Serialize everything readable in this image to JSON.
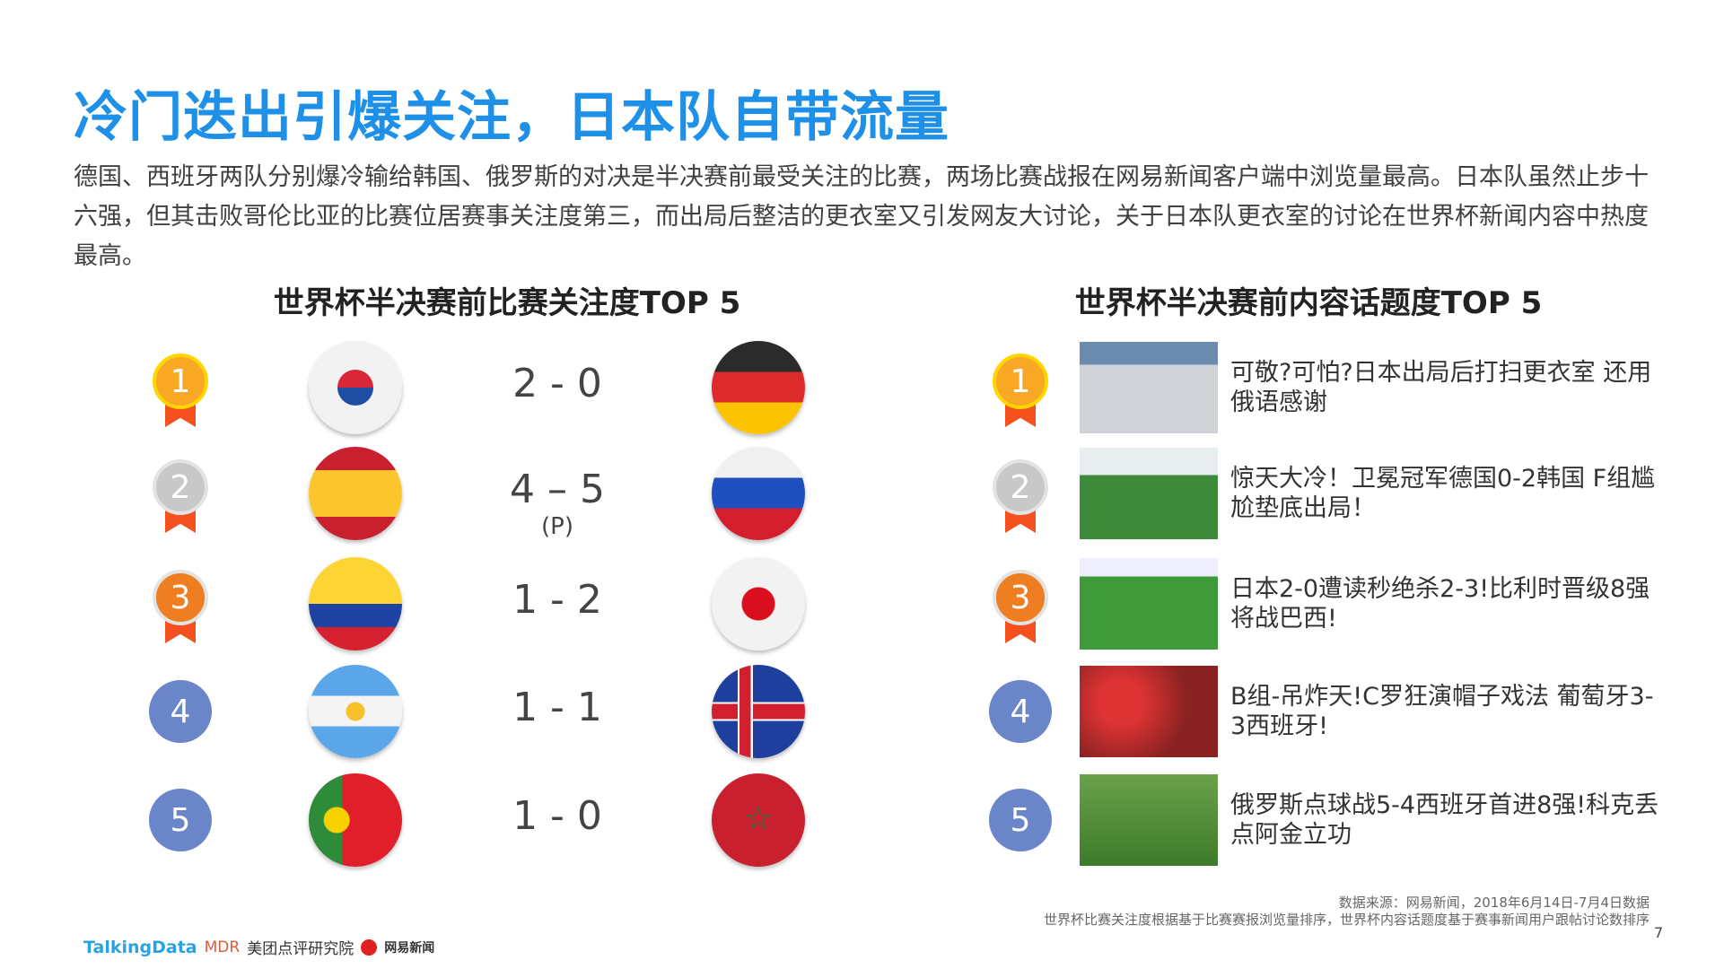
{
  "title": "冷门迭出引爆关注，日本队自带流量",
  "description": "德国、西班牙两队分别爆冷输给韩国、俄罗斯的对决是半决赛前最受关注的比赛，两场比赛战报在网易新闻客户端中浏览量最高。日本队虽然止步十六强，但其击败哥伦比亚的比赛位居赛事关注度第三，而出局后整洁的更衣室又引发网友大讨论，关于日本队更衣室的讨论在世界杯新闻内容中热度最高。",
  "left": {
    "heading": "世界杯半决赛前比赛关注度TOP 5",
    "matches": [
      {
        "rank": "1",
        "home": "korea",
        "score": "2 - 0",
        "away": "germany"
      },
      {
        "rank": "2",
        "home": "spain",
        "score": "4 – 5",
        "note": "(P)",
        "away": "russia"
      },
      {
        "rank": "3",
        "home": "colombia",
        "score": "1 - 2",
        "away": "japan"
      },
      {
        "rank": "4",
        "home": "argentina",
        "score": "1 - 1",
        "away": "iceland"
      },
      {
        "rank": "5",
        "home": "portugal",
        "score": "1 - 0",
        "away": "morocco"
      }
    ]
  },
  "right": {
    "heading": "世界杯半决赛前内容话题度TOP 5",
    "items": [
      {
        "rank": "1",
        "text": "可敬?可怕?日本出局后打扫更衣室 还用俄语感谢"
      },
      {
        "rank": "2",
        "text": "惊天大冷！卫冕冠军德国0-2韩国 F组尴尬垫底出局！"
      },
      {
        "rank": "3",
        "text": "日本2-0遭读秒绝杀2-3!比利时晋级8强将战巴西!"
      },
      {
        "rank": "4",
        "text": "B组-吊炸天!C罗狂演帽子戏法 葡萄牙3-3西班牙!"
      },
      {
        "rank": "5",
        "text": "俄罗斯点球战5-4西班牙首进8强!科克丢点阿金立功"
      }
    ]
  },
  "footer": {
    "source": "数据来源：网易新闻，2018年6月14日-7月4日数据",
    "note": "世界杯比赛关注度根据基于比赛赛报浏览量排序，世界杯内容话题度基于赛事新闻用户跟帖讨论数排序",
    "page": "7",
    "logos": [
      "TalkingData",
      "MDR",
      "美团点评研究院",
      "网易新闻"
    ]
  },
  "colors": {
    "title": "#1e90e8",
    "gold": "#f9a825",
    "silver": "#c8c8c8",
    "bronze": "#ef7d22",
    "rank": "#6a85c8",
    "ribbon": "#f4511e"
  }
}
